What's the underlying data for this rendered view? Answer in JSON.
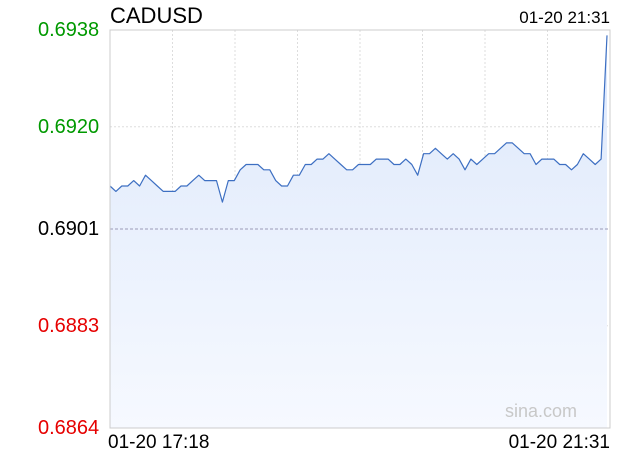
{
  "header": {
    "symbol": "CADUSD",
    "timestamp": "01-20 21:31"
  },
  "watermark": "sina.com",
  "colors": {
    "line": "#3d6fc2",
    "fill_top": "#dde8fb",
    "fill_bottom": "#f6f9ff",
    "up": "#009900",
    "down": "#e60000",
    "neutral": "#000000",
    "grid": "#dddddd",
    "ref_line": "#9a9ab8",
    "watermark": "#c8c8c8"
  },
  "chart_data": {
    "type": "line",
    "title": "CADUSD",
    "xlabel": "",
    "ylabel": "",
    "x_tick_labels": [
      "01-20 17:18",
      "01-20 21:31"
    ],
    "x_range": [
      "01-20 17:18",
      "01-20 21:31"
    ],
    "y_ticks": [
      {
        "value": "0.6938",
        "class": "up"
      },
      {
        "value": "0.6920",
        "class": "up"
      },
      {
        "value": "0.6901",
        "class": "neutral"
      },
      {
        "value": "0.6883",
        "class": "down"
      },
      {
        "value": "0.6864",
        "class": "down"
      }
    ],
    "ylim": [
      0.6864,
      0.6938
    ],
    "reference_value": 0.6901,
    "grid": true,
    "series": [
      {
        "values": [
          0.6909,
          0.6908,
          0.6909,
          0.6909,
          0.691,
          0.6909,
          0.6911,
          0.691,
          0.6909,
          0.6908,
          0.6908,
          0.6908,
          0.6909,
          0.6909,
          0.691,
          0.6911,
          0.691,
          0.691,
          0.691,
          0.6906,
          0.691,
          0.691,
          0.6912,
          0.6913,
          0.6913,
          0.6913,
          0.6912,
          0.6912,
          0.691,
          0.6909,
          0.6909,
          0.6911,
          0.6911,
          0.6913,
          0.6913,
          0.6914,
          0.6914,
          0.6915,
          0.6914,
          0.6913,
          0.6912,
          0.6912,
          0.6913,
          0.6913,
          0.6913,
          0.6914,
          0.6914,
          0.6914,
          0.6913,
          0.6913,
          0.6914,
          0.6913,
          0.6911,
          0.6915,
          0.6915,
          0.6916,
          0.6915,
          0.6914,
          0.6915,
          0.6914,
          0.6912,
          0.6914,
          0.6913,
          0.6914,
          0.6915,
          0.6915,
          0.6916,
          0.6917,
          0.6917,
          0.6916,
          0.6915,
          0.6915,
          0.6913,
          0.6914,
          0.6914,
          0.6914,
          0.6913,
          0.6913,
          0.6912,
          0.6913,
          0.6915,
          0.6914,
          0.6913,
          0.6914,
          0.6937
        ]
      }
    ]
  }
}
